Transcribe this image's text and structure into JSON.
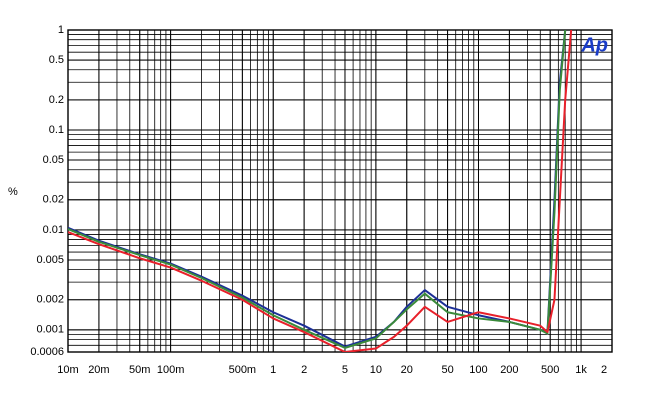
{
  "chart_data": {
    "type": "line",
    "y_label": "%",
    "logo": "Ap",
    "xscale": "log",
    "yscale": "log",
    "grid": true,
    "xlim": [
      0.01,
      2000
    ],
    "ylim": [
      0.0006,
      1
    ],
    "xticks": [
      {
        "value": 0.01,
        "label": "10m"
      },
      {
        "value": 0.02,
        "label": "20m"
      },
      {
        "value": 0.05,
        "label": "50m"
      },
      {
        "value": 0.1,
        "label": "100m"
      },
      {
        "value": 0.5,
        "label": "500m"
      },
      1,
      2,
      5,
      10,
      20,
      50,
      100,
      200,
      500,
      {
        "value": 1000,
        "label": "1k"
      },
      {
        "value": 2000,
        "label": "2"
      }
    ],
    "yticks": [
      1,
      0.5,
      0.2,
      0.1,
      0.05,
      0.02,
      0.01,
      0.005,
      0.002,
      0.001,
      0.0006
    ],
    "x": [
      0.01,
      0.02,
      0.05,
      0.1,
      0.2,
      0.5,
      1,
      2,
      5,
      10,
      15,
      20,
      30,
      50,
      100,
      200,
      400,
      470,
      550,
      620,
      700,
      800
    ],
    "series": [
      {
        "name": "Blue",
        "color": "#1c2f96",
        "values": [
          0.0105,
          0.0078,
          0.0057,
          0.0046,
          0.0034,
          0.0022,
          0.0015,
          0.0011,
          0.00068,
          0.00085,
          0.0012,
          0.0017,
          0.0025,
          0.0017,
          0.0014,
          0.0012,
          0.001,
          0.00095,
          0.02,
          0.3,
          1,
          null
        ]
      },
      {
        "name": "Green",
        "color": "#3a8a3a",
        "values": [
          0.0102,
          0.0076,
          0.0056,
          0.0045,
          0.0033,
          0.0021,
          0.0014,
          0.001,
          0.00066,
          0.00082,
          0.0012,
          0.0016,
          0.0023,
          0.0015,
          0.0013,
          0.0012,
          0.001,
          0.00092,
          0.015,
          0.25,
          1,
          null
        ]
      },
      {
        "name": "Red",
        "color": "#e8202a",
        "values": [
          0.0095,
          0.0072,
          0.0052,
          0.0042,
          0.0031,
          0.002,
          0.0013,
          0.00095,
          0.0006,
          0.00065,
          0.00085,
          0.0011,
          0.0017,
          0.0012,
          0.0015,
          0.0013,
          0.0011,
          0.00095,
          0.002,
          0.02,
          0.2,
          1
        ]
      }
    ]
  }
}
